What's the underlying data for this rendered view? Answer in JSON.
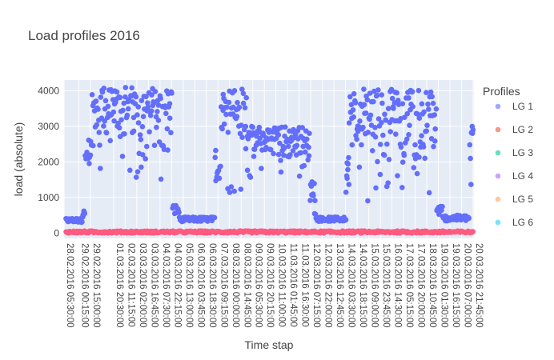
{
  "chart_data": {
    "type": "scatter",
    "title": "Load profiles 2016",
    "xlabel": "Time stap",
    "ylabel": "load (absolute)",
    "ylim": [
      -150,
      4300
    ],
    "yticks": [
      0,
      1000,
      2000,
      3000,
      4000
    ],
    "grid": true,
    "legend": {
      "title": "Profiles",
      "placement": "right",
      "entries": [
        "LG 1",
        "LG 2",
        "LG 3",
        "LG 4",
        "LG 5",
        "LG 6"
      ]
    },
    "x_start": "28.02.2016 05:30:00",
    "x_end": "20.03.2016 22:45:00",
    "xticks": [
      "28.02.2016 05:30:00",
      "29.02.2016 00:15:00",
      "29.02.2016 15:00:00",
      "01.03.2016 20:30:00",
      "02.03.2016 11:15:00",
      "03.03.2016 02:00:00",
      "03.03.2016 16:45:00",
      "04.03.2016 07:30:00",
      "04.03.2016 22:15:00",
      "05.03.2016 13:00:00",
      "06.03.2016 03:45:00",
      "06.03.2016 18:30:00",
      "07.03.2016 09:15:00",
      "08.03.2016 00:00:00",
      "08.03.2016 14:45:00",
      "09.03.2016 05:30:00",
      "09.03.2016 20:15:00",
      "10.03.2016 11:00:00",
      "11.03.2016 01:45:00",
      "11.03.2016 16:30:00",
      "12.03.2016 07:15:00",
      "12.03.2016 22:00:00",
      "13.03.2016 12:45:00",
      "14.03.2016 03:30:00",
      "14.03.2016 18:15:00",
      "15.03.2016 09:00:00",
      "15.03.2016 23:45:00",
      "16.03.2016 14:30:00",
      "17.03.2016 05:15:00",
      "17.03.2016 20:00:00",
      "18.03.2016 10:45:00",
      "19.03.2016 01:30:00",
      "19.03.2016 16:15:00",
      "20.03.2016 07:00:00",
      "20.03.2016 21:45:00"
    ],
    "series": [
      {
        "name": "LG 1",
        "color": "#636efa",
        "segments": [
          {
            "from": "28.02.2016 05:30:00",
            "to": "29.02.2016 05:00:00",
            "level": [
              300,
              420
            ]
          },
          {
            "from": "29.02.2016 05:00:00",
            "to": "29.02.2016 08:00:00",
            "level": [
              450,
              650
            ]
          },
          {
            "from": "29.02.2016 08:00:00",
            "to": "29.02.2016 16:00:00",
            "level": [
              1300,
              2700
            ]
          },
          {
            "from": "29.02.2016 16:00:00",
            "to": "04.03.2016 23:00:00",
            "level": [
              1500,
              4100
            ]
          },
          {
            "from": "04.03.2016 23:00:00",
            "to": "05.03.2016 08:00:00",
            "level": [
              500,
              800
            ]
          },
          {
            "from": "05.03.2016 08:00:00",
            "to": "07.03.2016 05:00:00",
            "level": [
              320,
              450
            ]
          },
          {
            "from": "07.03.2016 05:00:00",
            "to": "07.03.2016 12:00:00",
            "level": [
              900,
              2500
            ]
          },
          {
            "from": "07.03.2016 12:00:00",
            "to": "08.03.2016 22:00:00",
            "level": [
              1100,
              4150
            ]
          },
          {
            "from": "08.03.2016 22:00:00",
            "to": "12.03.2016 06:00:00",
            "level": [
              1500,
              3000
            ]
          },
          {
            "from": "12.03.2016 06:00:00",
            "to": "12.03.2016 14:00:00",
            "level": [
              500,
              1500
            ]
          },
          {
            "from": "12.03.2016 14:00:00",
            "to": "14.03.2016 04:00:00",
            "level": [
              330,
              450
            ]
          },
          {
            "from": "14.03.2016 04:00:00",
            "to": "14.03.2016 08:00:00",
            "level": [
              900,
              2200
            ]
          },
          {
            "from": "14.03.2016 08:00:00",
            "to": "18.03.2016 23:00:00",
            "level": [
              850,
              4050
            ]
          },
          {
            "from": "18.03.2016 23:00:00",
            "to": "19.03.2016 07:00:00",
            "level": [
              500,
              780
            ]
          },
          {
            "from": "19.03.2016 07:00:00",
            "to": "20.03.2016 17:00:00",
            "level": [
              340,
              500
            ]
          },
          {
            "from": "20.03.2016 17:00:00",
            "to": "20.03.2016 22:45:00",
            "level": [
              1100,
              3100
            ]
          }
        ]
      },
      {
        "name": "LG 2",
        "color": "#ef553b",
        "level": [
          0,
          60
        ]
      },
      {
        "name": "LG 3",
        "color": "#00cc96",
        "level": [
          0,
          30
        ]
      },
      {
        "name": "LG 4",
        "color": "#ab63fa",
        "level": [
          0,
          30
        ]
      },
      {
        "name": "LG 5",
        "color": "#ffa15a",
        "level": [
          0,
          30
        ]
      },
      {
        "name": "LG 6",
        "color": "#19d3f3",
        "level": [
          0,
          30
        ]
      }
    ],
    "overlap_color": "#ff5a80"
  }
}
